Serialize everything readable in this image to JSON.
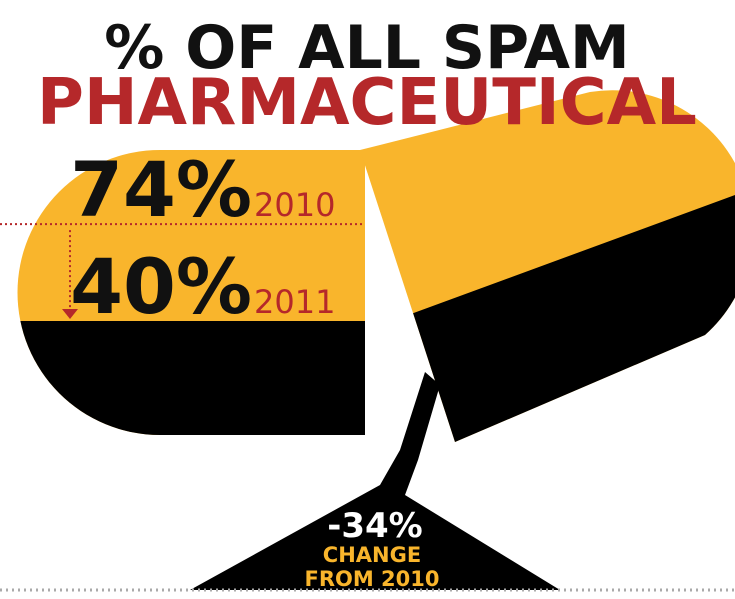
{
  "chart_data": {
    "type": "pill",
    "title": "% OF ALL SPAM",
    "subtitle": "PHARMACEUTICAL",
    "categories": [
      "2010",
      "2011"
    ],
    "values": [
      74,
      40
    ],
    "value_labels": [
      "74%",
      "40%"
    ],
    "change": -34,
    "change_label": "-34%",
    "annotation": [
      "CHANGE",
      "FROM 2010"
    ],
    "ylim": [
      0,
      100
    ],
    "colors": {
      "fill": "#f9b52c",
      "level": "#000000",
      "accent": "#b5282a"
    }
  }
}
